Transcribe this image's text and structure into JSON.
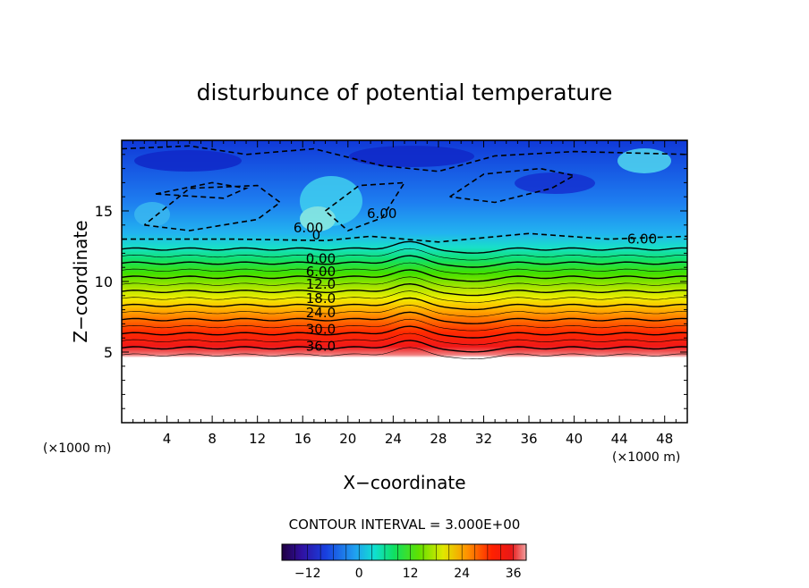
{
  "chart_data": {
    "type": "heatmap",
    "title": "disturbunce of potential temperature",
    "xlabel": "X−coordinate",
    "ylabel": "Z−coordinate",
    "x_unit_left": "(×1000 m)",
    "x_unit_right": "(×1000 m)",
    "xlim": [
      0,
      50
    ],
    "ylim": [
      0,
      20
    ],
    "x_ticks": [
      "4",
      "8",
      "12",
      "16",
      "20",
      "24",
      "28",
      "32",
      "36",
      "40",
      "44",
      "48"
    ],
    "y_ticks": [
      "5",
      "10",
      "15"
    ],
    "footer": "CONTOUR INTERVAL = 3.000E+00",
    "contour_interval": 3.0,
    "colorbar": {
      "min": -18,
      "max": 39,
      "ticks": [
        "−12",
        "0",
        "12",
        "24",
        "36"
      ]
    },
    "contour_labels": [
      {
        "text": "0.00",
        "x": 17.6,
        "z": 11.6
      },
      {
        "text": "6.00",
        "x": 17.6,
        "z": 10.7
      },
      {
        "text": "12.0",
        "x": 17.6,
        "z": 9.8
      },
      {
        "text": "18.0",
        "x": 17.6,
        "z": 8.8
      },
      {
        "text": "24.0",
        "x": 17.6,
        "z": 7.8
      },
      {
        "text": "30.0",
        "x": 17.6,
        "z": 6.6
      },
      {
        "text": "36.0",
        "x": 17.6,
        "z": 5.4
      },
      {
        "text": "6.00",
        "x": 46.0,
        "z": 13.0
      },
      {
        "text": "6.00",
        "x": 23.0,
        "z": 14.8
      },
      {
        "text": "6.00",
        "x": 16.5,
        "z": 13.8
      },
      {
        "text": "0",
        "x": 17.2,
        "z": 13.3
      }
    ],
    "layers": [
      {
        "z_bottom": 4.8,
        "z_top": 5.3,
        "value": 39
      },
      {
        "z_bottom": 5.3,
        "z_top": 6.3,
        "value": 36
      },
      {
        "z_bottom": 6.3,
        "z_top": 7.3,
        "value": 30
      },
      {
        "z_bottom": 7.3,
        "z_top": 8.3,
        "value": 24
      },
      {
        "z_bottom": 8.3,
        "z_top": 9.3,
        "value": 18
      },
      {
        "z_bottom": 9.3,
        "z_top": 10.3,
        "value": 12
      },
      {
        "z_bottom": 10.3,
        "z_top": 11.3,
        "value": 6
      },
      {
        "z_bottom": 11.3,
        "z_top": 12.3,
        "value": 0
      },
      {
        "z_bottom": 12.3,
        "z_top": 20.0,
        "value": -6
      }
    ]
  }
}
